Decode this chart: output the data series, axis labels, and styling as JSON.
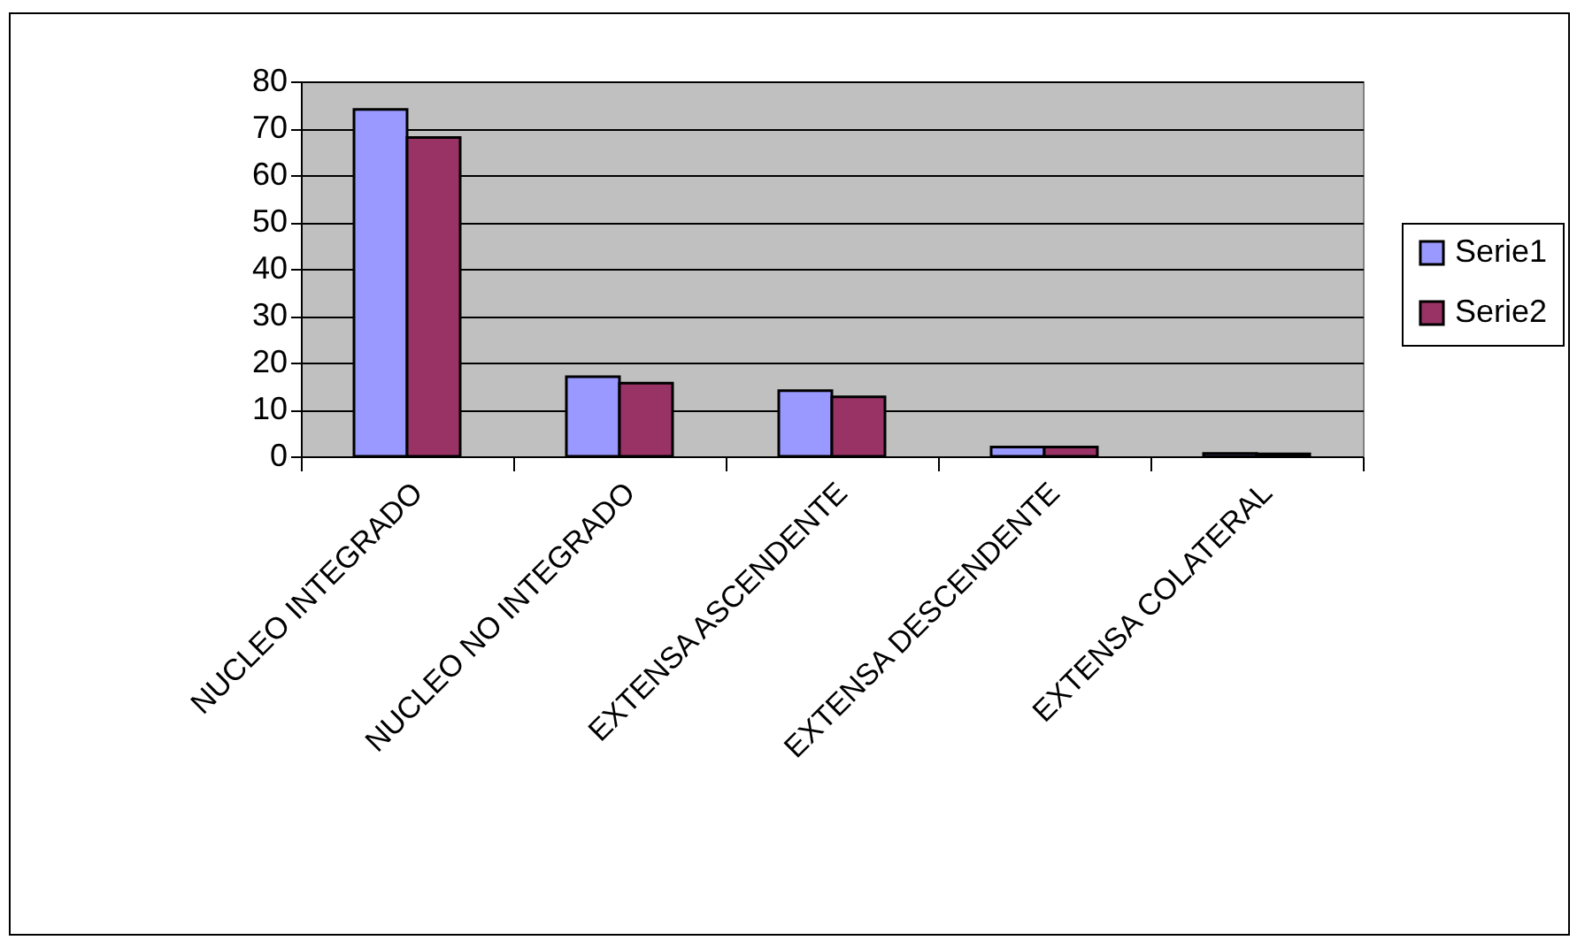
{
  "chart_data": {
    "type": "bar",
    "categories": [
      "NUCLEO INTEGRADO",
      "NUCLEO NO INTEGRADO",
      "EXTENSA ASCENDENTE",
      "EXTENSA DESCENDENTE",
      "EXTENSA COLATERAL"
    ],
    "series": [
      {
        "name": "Serie1",
        "color": "#9999ff",
        "values": [
          74,
          17,
          14,
          2,
          0.6
        ]
      },
      {
        "name": "Serie2",
        "color": "#993366",
        "values": [
          68,
          15.6,
          12.7,
          2,
          0.5
        ]
      }
    ],
    "ylim": [
      0,
      80
    ],
    "yticks": [
      0,
      10,
      20,
      30,
      40,
      50,
      60,
      70,
      80
    ],
    "grid": "y",
    "legend": "right"
  }
}
